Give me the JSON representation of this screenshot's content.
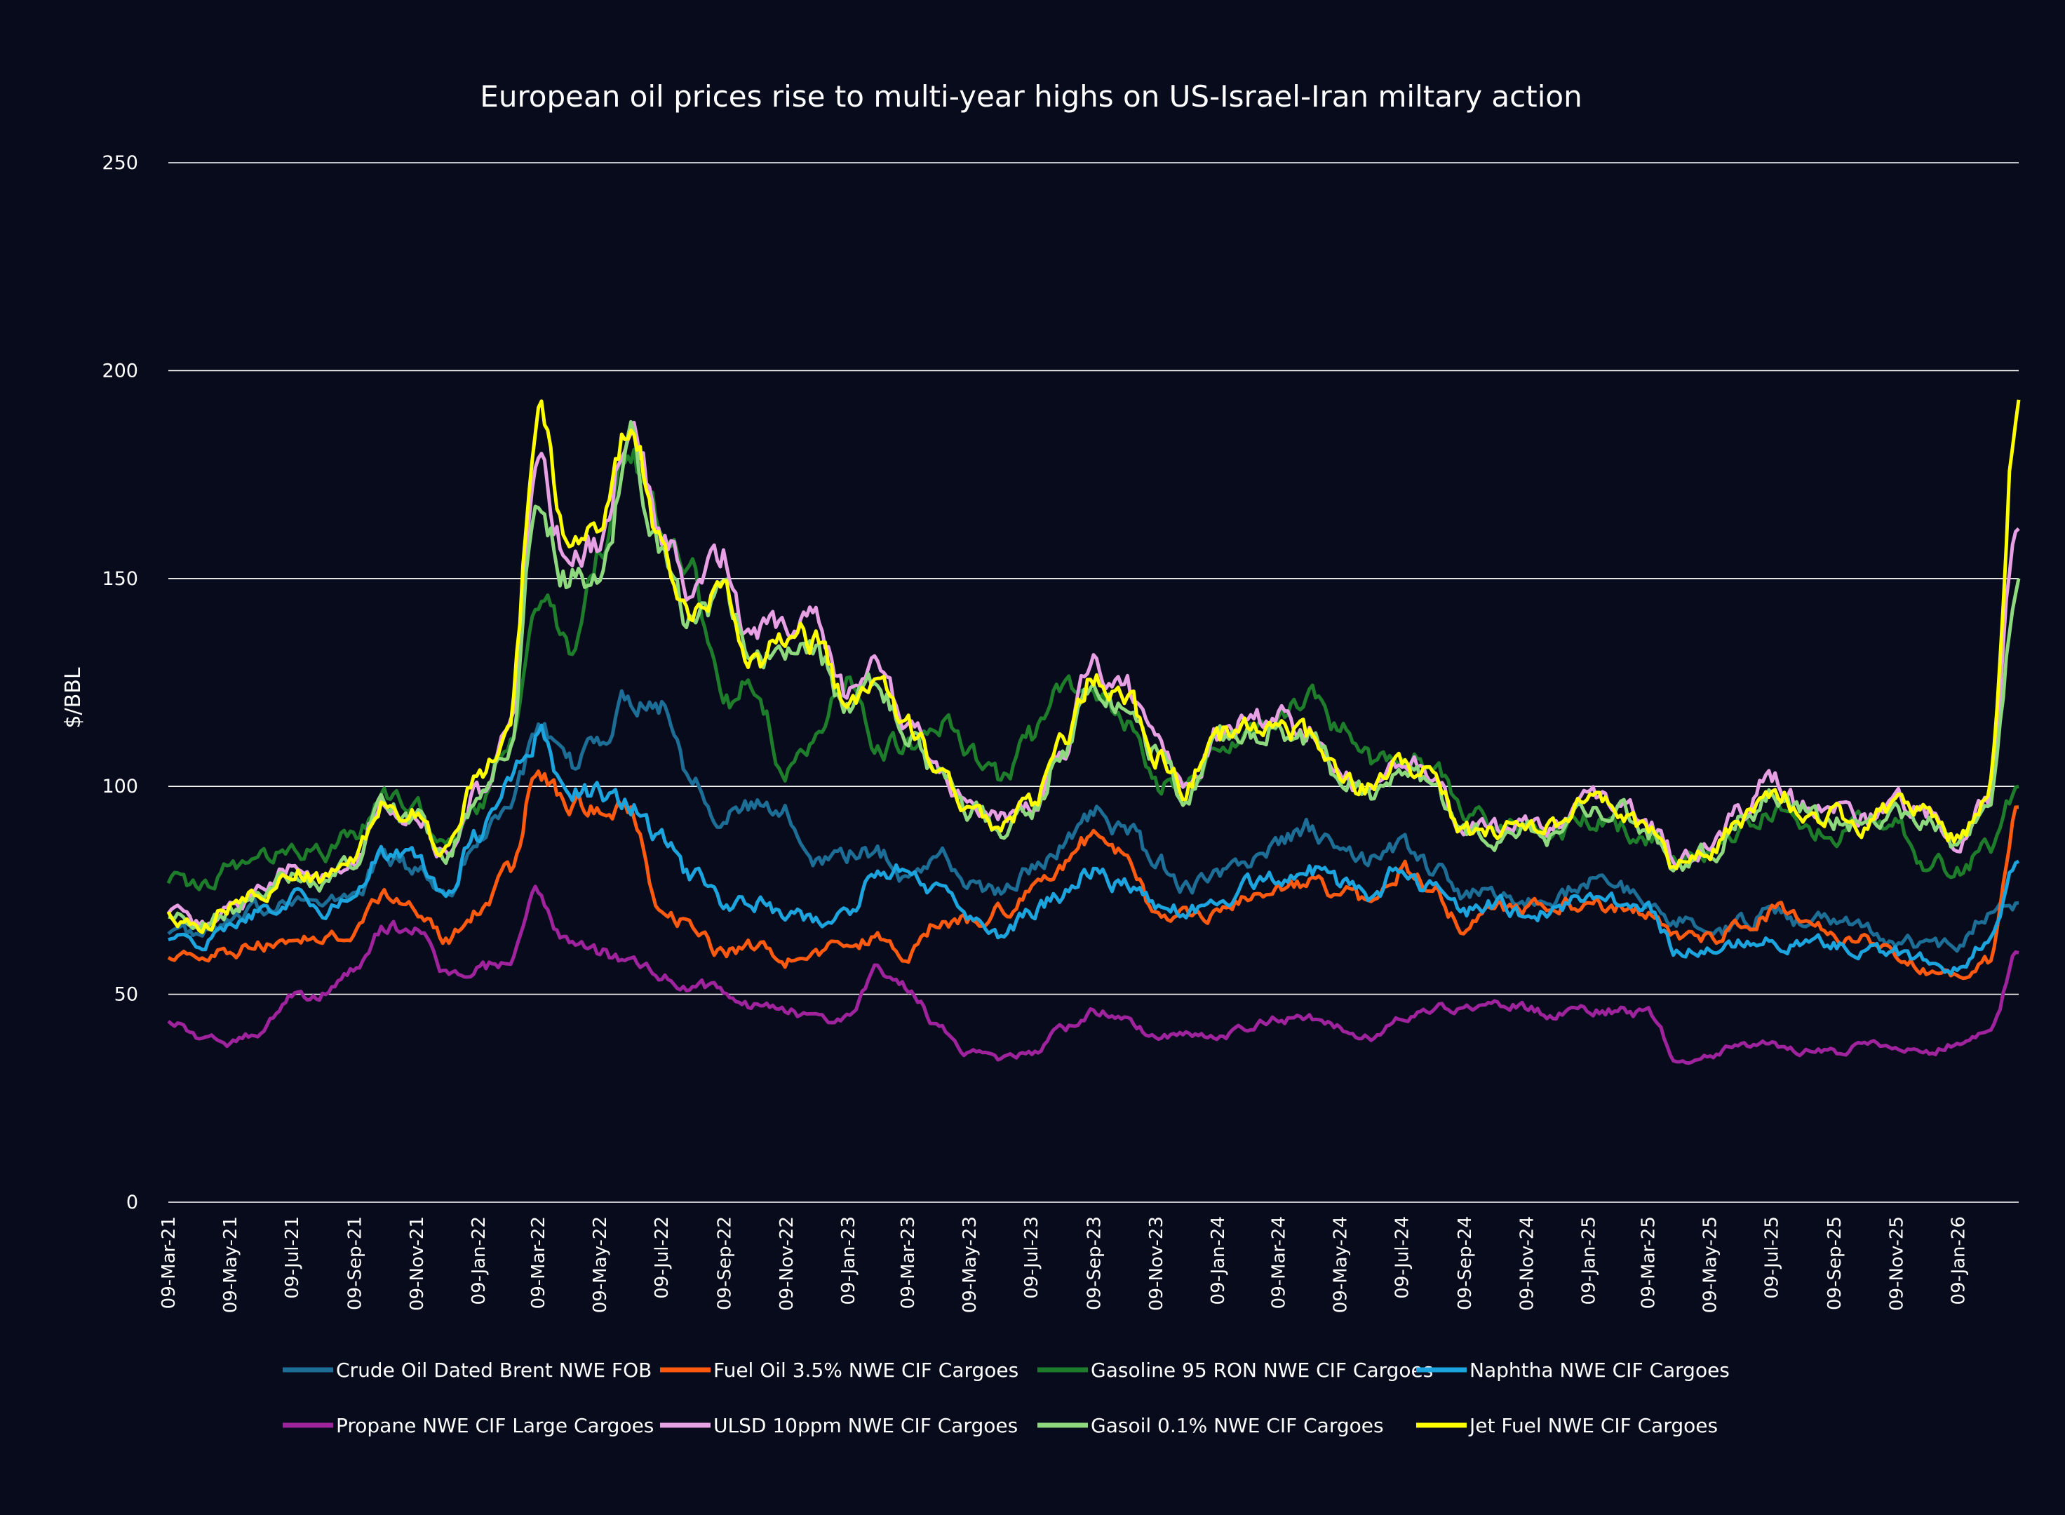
{
  "chart_data": {
    "type": "line",
    "title": "European oil prices rise to multi-year highs on US-Israel-Iran miltary action",
    "ylabel": "$/BBL",
    "xlabel": "",
    "ylim": [
      0,
      250
    ],
    "yticks": [
      0,
      50,
      100,
      150,
      200,
      250
    ],
    "grid": true,
    "legend_position": "bottom",
    "x_start": "2021-03-09",
    "x_end": "2026-03-10",
    "xtick_labels": [
      "09-Mar-21",
      "09-May-21",
      "09-Jul-21",
      "09-Sep-21",
      "09-Nov-21",
      "09-Jan-22",
      "09-Mar-22",
      "09-May-22",
      "09-Jul-22",
      "09-Sep-22",
      "09-Nov-22",
      "09-Jan-23",
      "09-Mar-23",
      "09-May-23",
      "09-Jul-23",
      "09-Sep-23",
      "09-Nov-23",
      "09-Jan-24",
      "09-Mar-24",
      "09-May-24",
      "09-Jul-24",
      "09-Sep-24",
      "09-Nov-24",
      "09-Jan-25",
      "09-Mar-25",
      "09-May-25",
      "09-Jul-25",
      "09-Sep-25",
      "09-Nov-25",
      "09-Jan-26"
    ],
    "x": [
      "Mar-21",
      "Apr-21",
      "May-21",
      "Jun-21",
      "Jul-21",
      "Aug-21",
      "Sep-21",
      "Oct-21",
      "Nov-21",
      "Dec-21",
      "Jan-22",
      "Feb-22",
      "Mar-22",
      "Apr-22",
      "May-22",
      "Jun-22",
      "Jul-22",
      "Aug-22",
      "Sep-22",
      "Oct-22",
      "Nov-22",
      "Dec-22",
      "Jan-23",
      "Feb-23",
      "Mar-23",
      "Apr-23",
      "May-23",
      "Jun-23",
      "Jul-23",
      "Aug-23",
      "Sep-23",
      "Oct-23",
      "Nov-23",
      "Dec-23",
      "Jan-24",
      "Feb-24",
      "Mar-24",
      "Apr-24",
      "May-24",
      "Jun-24",
      "Jul-24",
      "Aug-24",
      "Sep-24",
      "Oct-24",
      "Nov-24",
      "Dec-24",
      "Jan-25",
      "Feb-25",
      "Mar-25",
      "Apr-25",
      "May-25",
      "Jun-25",
      "Jul-25",
      "Aug-25",
      "Sep-25",
      "Oct-25",
      "Nov-25",
      "Dec-25",
      "Jan-26",
      "Feb-26",
      "Mar-26"
    ],
    "series": [
      {
        "name": "Crude Oil Dated Brent NWE FOB",
        "color": "#1d6e96",
        "values": [
          66,
          64,
          67,
          70,
          74,
          71,
          74,
          83,
          80,
          75,
          87,
          96,
          112,
          104,
          112,
          122,
          120,
          103,
          93,
          95,
          93,
          83,
          84,
          84,
          78,
          84,
          76,
          75,
          80,
          86,
          94,
          90,
          82,
          76,
          78,
          82,
          86,
          90,
          84,
          82,
          86,
          80,
          74,
          74,
          72,
          73,
          78,
          75,
          72,
          68,
          64,
          67,
          70,
          67,
          68,
          66,
          63,
          62,
          62,
          70,
          72
        ]
      },
      {
        "name": "Fuel Oil 3.5% NWE CIF Cargoes",
        "color": "#ff5a0f",
        "values": [
          60,
          58,
          60,
          62,
          64,
          63,
          65,
          74,
          70,
          63,
          70,
          79,
          104,
          96,
          95,
          95,
          70,
          67,
          60,
          62,
          58,
          60,
          62,
          64,
          60,
          67,
          68,
          70,
          74,
          82,
          88,
          84,
          70,
          70,
          70,
          72,
          74,
          76,
          74,
          72,
          80,
          76,
          66,
          72,
          70,
          71,
          72,
          71,
          70,
          64,
          64,
          66,
          70,
          68,
          64,
          64,
          60,
          56,
          54,
          58,
          95
        ]
      },
      {
        "name": "Gasoline 95 RON NWE CIF Cargoes",
        "color": "#1e7d2a",
        "values": [
          78,
          75,
          80,
          82,
          86,
          84,
          88,
          97,
          95,
          85,
          95,
          110,
          148,
          132,
          158,
          178,
          165,
          150,
          120,
          125,
          105,
          112,
          124,
          110,
          110,
          117,
          108,
          102,
          112,
          122,
          125,
          115,
          100,
          100,
          108,
          112,
          118,
          120,
          114,
          106,
          108,
          104,
          94,
          90,
          90,
          88,
          92,
          90,
          88,
          82,
          84,
          90,
          94,
          90,
          88,
          92,
          90,
          82,
          80,
          85,
          100
        ]
      },
      {
        "name": "Naphtha NWE CIF Cargoes",
        "color": "#1ca4df",
        "values": [
          64,
          62,
          66,
          70,
          73,
          70,
          74,
          84,
          82,
          75,
          88,
          100,
          112,
          100,
          98,
          96,
          88,
          78,
          72,
          72,
          70,
          68,
          70,
          80,
          80,
          74,
          68,
          64,
          70,
          74,
          80,
          76,
          72,
          70,
          72,
          76,
          78,
          80,
          76,
          74,
          80,
          76,
          70,
          72,
          70,
          70,
          74,
          72,
          70,
          60,
          60,
          62,
          63,
          62,
          62,
          60,
          60,
          58,
          56,
          62,
          82
        ]
      },
      {
        "name": "Propane NWE CIF Large Cargoes",
        "color": "#a0239e",
        "values": [
          44,
          40,
          38,
          41,
          50,
          50,
          55,
          66,
          66,
          54,
          56,
          58,
          74,
          62,
          60,
          58,
          54,
          52,
          51,
          47,
          46,
          44,
          44,
          56,
          52,
          42,
          36,
          34,
          36,
          42,
          46,
          44,
          40,
          40,
          40,
          42,
          44,
          44,
          42,
          40,
          44,
          47,
          47,
          48,
          47,
          45,
          46,
          46,
          45,
          34,
          36,
          38,
          38,
          36,
          36,
          38,
          36,
          36,
          38,
          40,
          60
        ]
      },
      {
        "name": "ULSD 10ppm NWE CIF Cargoes",
        "color": "#e7a0e3",
        "values": [
          70,
          67,
          71,
          75,
          80,
          78,
          82,
          96,
          94,
          84,
          98,
          110,
          175,
          155,
          158,
          190,
          160,
          145,
          155,
          135,
          140,
          140,
          122,
          128,
          115,
          104,
          96,
          92,
          96,
          110,
          128,
          124,
          110,
          100,
          112,
          116,
          116,
          114,
          104,
          100,
          106,
          102,
          90,
          90,
          92,
          90,
          96,
          96,
          90,
          82,
          86,
          94,
          102,
          96,
          94,
          92,
          96,
          94,
          88,
          98,
          162
        ]
      },
      {
        "name": "Gasoil 0.1% NWE CIF Cargoes",
        "color": "#8ed87e",
        "values": [
          69,
          66,
          70,
          74,
          79,
          77,
          81,
          95,
          92,
          83,
          96,
          108,
          168,
          150,
          150,
          182,
          155,
          140,
          145,
          128,
          132,
          132,
          118,
          124,
          112,
          102,
          94,
          90,
          94,
          108,
          125,
          120,
          108,
          98,
          110,
          114,
          114,
          112,
          102,
          98,
          104,
          100,
          88,
          88,
          90,
          88,
          94,
          94,
          88,
          80,
          84,
          92,
          98,
          94,
          92,
          90,
          94,
          92,
          86,
          96,
          150
        ]
      },
      {
        "name": "Jet Fuel NWE CIF Cargoes",
        "color": "#ffff00",
        "values": [
          70,
          66,
          71,
          75,
          80,
          78,
          82,
          96,
          93,
          84,
          100,
          112,
          190,
          156,
          160,
          185,
          158,
          142,
          148,
          130,
          136,
          135,
          120,
          128,
          114,
          104,
          95,
          91,
          95,
          110,
          128,
          122,
          108,
          100,
          112,
          116,
          115,
          112,
          103,
          99,
          106,
          102,
          89,
          89,
          91,
          89,
          95,
          95,
          89,
          81,
          84,
          93,
          99,
          95,
          93,
          91,
          95,
          93,
          87,
          97,
          193
        ]
      }
    ]
  }
}
